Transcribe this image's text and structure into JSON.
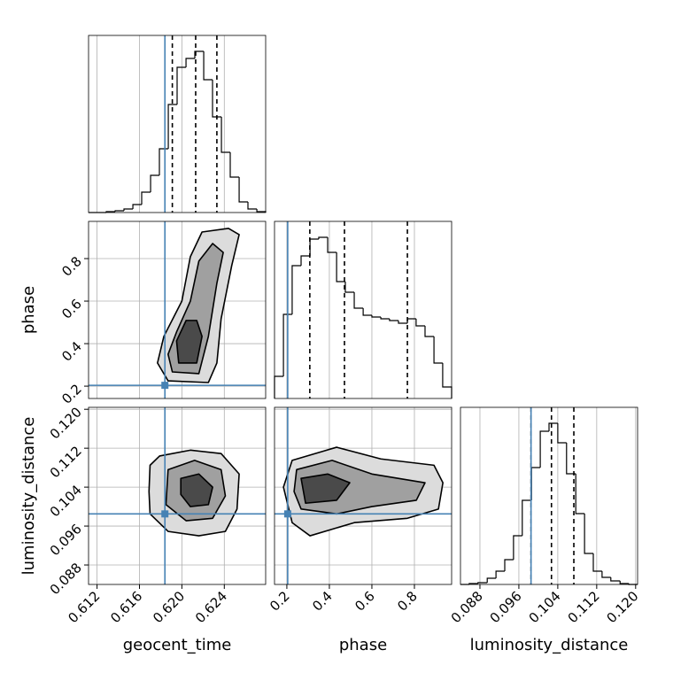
{
  "chart_data": {
    "type": "corner",
    "parameters": [
      {
        "label": "geocent_time",
        "lim": [
          0.6112,
          0.6279
        ],
        "ticks": [
          0.612,
          0.616,
          {
            "value": 0.62,
            "label": "0.620"
          },
          0.624
        ],
        "truth": 0.6184,
        "quantiles": [
          0.6191,
          0.6213,
          0.6233
        ]
      },
      {
        "label": "phase",
        "lim": [
          0.142,
          0.975
        ],
        "ticks": [
          0.2,
          0.4,
          0.6,
          0.8
        ],
        "truth": 0.204,
        "quantiles": [
          0.308,
          0.471,
          0.767
        ]
      },
      {
        "label": "luminosity_distance",
        "lim": [
          0.084,
          0.1204
        ],
        "ticks": [
          0.088,
          0.096,
          0.104,
          0.112,
          {
            "value": 0.12,
            "label": "0.120"
          }
        ],
        "truth": 0.0985,
        "quantiles": [
          0.0985,
          0.1027,
          0.1073
        ]
      }
    ],
    "histograms": [
      {
        "bins": [
          0.6112,
          0.61204,
          0.61287,
          0.61371,
          0.61454,
          0.61538,
          0.61621,
          0.61705,
          0.61788,
          0.61872,
          0.61955,
          0.62039,
          0.62122,
          0.62206,
          0.62289,
          0.62373,
          0.62456,
          0.6254,
          0.62623,
          0.62707,
          0.6279
        ],
        "counts": [
          0,
          0,
          1,
          2,
          4,
          9,
          23,
          42,
          72,
          122,
          164,
          174,
          182,
          150,
          108,
          68,
          40,
          12,
          4,
          1
        ],
        "ylim": [
          0,
          200
        ]
      },
      {
        "bins": [
          0.142,
          0.184,
          0.225,
          0.267,
          0.309,
          0.35,
          0.392,
          0.434,
          0.475,
          0.517,
          0.559,
          0.6,
          0.642,
          0.683,
          0.725,
          0.767,
          0.808,
          0.85,
          0.892,
          0.933,
          0.975
        ],
        "counts": [
          25,
          95,
          150,
          161,
          180,
          182,
          165,
          132,
          120,
          102,
          94,
          92,
          90,
          88,
          85,
          90,
          82,
          70,
          40,
          13
        ],
        "ylim": [
          0,
          200
        ]
      },
      {
        "bins": [
          0.084,
          0.0858,
          0.0876,
          0.0895,
          0.0913,
          0.0931,
          0.0949,
          0.0967,
          0.0986,
          0.1004,
          0.1022,
          0.104,
          0.1058,
          0.1077,
          0.1095,
          0.1113,
          0.1131,
          0.1149,
          0.1168,
          0.1186,
          0.1204
        ],
        "counts": [
          0,
          1,
          2,
          7,
          15,
          28,
          55,
          95,
          132,
          173,
          182,
          160,
          125,
          80,
          35,
          15,
          8,
          4,
          1,
          0
        ],
        "ylim": [
          0,
          200
        ]
      }
    ],
    "contours": [
      {
        "x_param": 0,
        "y_param": 1,
        "levels": [
          {
            "x": [
              0.6187,
              0.6225,
              0.6233,
              0.6237,
              0.6247,
              0.6254,
              0.6244,
              0.6219,
              0.6208,
              0.62,
              0.6183,
              0.6177
            ],
            "y": [
              0.225,
              0.217,
              0.309,
              0.517,
              0.767,
              0.913,
              0.942,
              0.925,
              0.809,
              0.6,
              0.434,
              0.309
            ]
          },
          {
            "x": [
              0.6191,
              0.6216,
              0.6225,
              0.6233,
              0.6239,
              0.6229,
              0.6216,
              0.6208,
              0.6195,
              0.6187
            ],
            "y": [
              0.267,
              0.259,
              0.434,
              0.684,
              0.829,
              0.871,
              0.788,
              0.6,
              0.455,
              0.35
            ]
          },
          {
            "x": [
              0.6197,
              0.6214,
              0.6219,
              0.6214,
              0.6204,
              0.6195
            ],
            "y": [
              0.309,
              0.309,
              0.434,
              0.509,
              0.509,
              0.413
            ]
          }
        ]
      },
      {
        "x_param": 0,
        "y_param": 2,
        "levels": [
          {
            "x": [
              0.617,
              0.6179,
              0.6208,
              0.6237,
              0.6254,
              0.6252,
              0.6241,
              0.6216,
              0.6187,
              0.617,
              0.6169
            ],
            "y": [
              0.1085,
              0.1104,
              0.1116,
              0.1109,
              0.1067,
              0.0995,
              0.0949,
              0.094,
              0.0949,
              0.0985,
              0.1031
            ]
          },
          {
            "x": [
              0.6187,
              0.6212,
              0.6237,
              0.6241,
              0.6229,
              0.6204,
              0.6185
            ],
            "y": [
              0.1076,
              0.1095,
              0.1076,
              0.1022,
              0.0976,
              0.0971,
              0.1004
            ]
          },
          {
            "x": [
              0.6199,
              0.6216,
              0.6229,
              0.6225,
              0.6208,
              0.6199
            ],
            "y": [
              0.1058,
              0.1067,
              0.104,
              0.1004,
              0.1,
              0.1025
            ]
          }
        ]
      },
      {
        "x_param": 1,
        "y_param": 2,
        "levels": [
          {
            "x": [
              0.225,
              0.434,
              0.642,
              0.892,
              0.934,
              0.913,
              0.767,
              0.517,
              0.309,
              0.225,
              0.184
            ],
            "y": [
              0.1095,
              0.1122,
              0.1098,
              0.1085,
              0.1049,
              0.0995,
              0.0976,
              0.0967,
              0.094,
              0.0967,
              0.104
            ]
          },
          {
            "x": [
              0.246,
              0.413,
              0.6,
              0.85,
              0.809,
              0.6,
              0.434,
              0.267,
              0.234
            ],
            "y": [
              0.1076,
              0.1095,
              0.1067,
              0.1049,
              0.1013,
              0.1,
              0.0985,
              0.0995,
              0.1031
            ]
          },
          {
            "x": [
              0.267,
              0.392,
              0.496,
              0.434,
              0.288
            ],
            "y": [
              0.1058,
              0.1067,
              0.1049,
              0.1013,
              0.1007
            ]
          }
        ]
      }
    ]
  }
}
